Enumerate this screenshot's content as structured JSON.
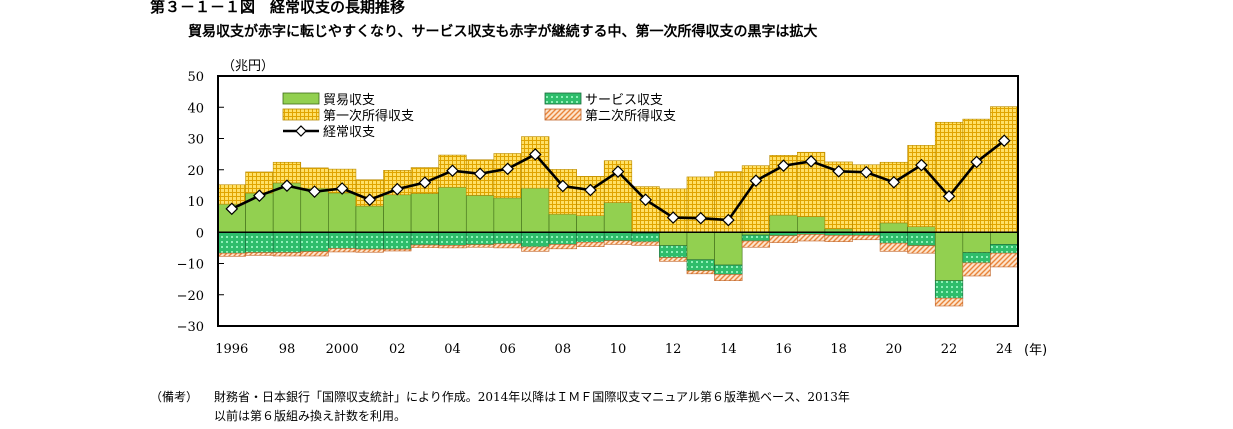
{
  "figure": {
    "heading": "第３－１－１図　経常収支の長期推移",
    "subtitle": "貿易収支が赤字に転じやすくなり、サービス収支も赤字が継続する中、第一次所得収支の黒字は拡大",
    "note_label": "（備考）",
    "note_line1": "財務省・日本銀行「国際収支統計」により作成。2014年以降はＩＭＦ国際収支マニュアル第６版準拠ベース、2013年",
    "note_line2": "以前は第６版組み換え計数を利用。"
  },
  "colors": {
    "trade": "#92d050",
    "services": "#2ebd6b",
    "primary_income": "#ffe06a",
    "secondary_income": "#f4a460",
    "current_account": "#000000"
  },
  "chart_data": {
    "type": "bar",
    "stacked": true,
    "x": [
      1996,
      1997,
      1998,
      1999,
      2000,
      2001,
      2002,
      2003,
      2004,
      2005,
      2006,
      2007,
      2008,
      2009,
      2010,
      2011,
      2012,
      2013,
      2014,
      2015,
      2016,
      2017,
      2018,
      2019,
      2020,
      2021,
      2022,
      2023,
      2024
    ],
    "xtick_labels": [
      "1996",
      "98",
      "2000",
      "02",
      "04",
      "06",
      "08",
      "10",
      "12",
      "14",
      "16",
      "18",
      "20",
      "22",
      "24"
    ],
    "xtick_years": [
      1996,
      1998,
      2000,
      2002,
      2004,
      2006,
      2008,
      2010,
      2012,
      2014,
      2016,
      2018,
      2020,
      2022,
      2024
    ],
    "x_unit": "(年)",
    "y_unit": "（兆円）",
    "ylim": [
      -30,
      50
    ],
    "yticks": [
      50,
      40,
      30,
      20,
      10,
      0,
      -10,
      -20,
      -30
    ],
    "ytick_labels": [
      "50",
      "40",
      "30",
      "20",
      "10",
      "0",
      "−10",
      "−20",
      "−30"
    ],
    "legend_position": "top-left",
    "series": [
      {
        "key": "trade",
        "name": "貿易収支",
        "type": "bar",
        "values": [
          9.0,
          12.5,
          15.8,
          14.1,
          12.6,
          8.4,
          12.0,
          12.4,
          14.4,
          11.8,
          11.0,
          14.1,
          5.8,
          5.3,
          9.5,
          -0.3,
          -4.3,
          -8.8,
          -10.5,
          -0.9,
          5.5,
          5.0,
          1.1,
          0.0,
          3.0,
          1.8,
          -15.5,
          -6.5,
          -3.9
        ]
      },
      {
        "key": "services",
        "name": "サービス収支",
        "type": "bar",
        "values": [
          -6.7,
          -6.5,
          -6.5,
          -6.2,
          -5.2,
          -5.4,
          -5.4,
          -4.1,
          -4.2,
          -4.0,
          -3.7,
          -4.7,
          -3.9,
          -3.2,
          -2.7,
          -2.8,
          -3.8,
          -3.5,
          -3.0,
          -1.9,
          -1.1,
          -0.7,
          -1.0,
          -1.0,
          -3.5,
          -4.3,
          -5.6,
          -3.3,
          -2.8
        ]
      },
      {
        "key": "primary_income",
        "name": "第一次所得収支",
        "type": "bar",
        "values": [
          6.2,
          6.8,
          6.6,
          6.5,
          7.6,
          8.4,
          7.8,
          8.3,
          10.3,
          11.4,
          14.2,
          16.5,
          14.3,
          12.6,
          13.4,
          14.6,
          13.9,
          17.7,
          19.4,
          21.3,
          19.1,
          20.6,
          21.4,
          21.6,
          19.4,
          26.0,
          35.2,
          36.2,
          40.2
        ]
      },
      {
        "key": "secondary_income",
        "name": "第二次所得収支",
        "type": "bar",
        "values": [
          -1.0,
          -0.9,
          -1.1,
          -1.4,
          -1.1,
          -1.0,
          -0.6,
          -0.8,
          -0.8,
          -0.8,
          -1.3,
          -1.4,
          -1.4,
          -1.4,
          -1.2,
          -1.1,
          -1.2,
          -1.0,
          -2.0,
          -2.0,
          -2.2,
          -2.1,
          -2.0,
          -1.4,
          -2.6,
          -2.4,
          -2.5,
          -4.2,
          -4.4
        ]
      },
      {
        "key": "current_account",
        "name": "経常収支",
        "type": "line",
        "values": [
          7.5,
          11.7,
          14.9,
          13.0,
          14.0,
          10.4,
          13.8,
          15.9,
          19.7,
          18.7,
          20.3,
          24.9,
          14.8,
          13.5,
          19.4,
          10.4,
          4.7,
          4.5,
          3.9,
          16.5,
          21.3,
          22.7,
          19.5,
          19.2,
          16.0,
          21.5,
          11.5,
          22.5,
          29.3
        ]
      }
    ]
  }
}
